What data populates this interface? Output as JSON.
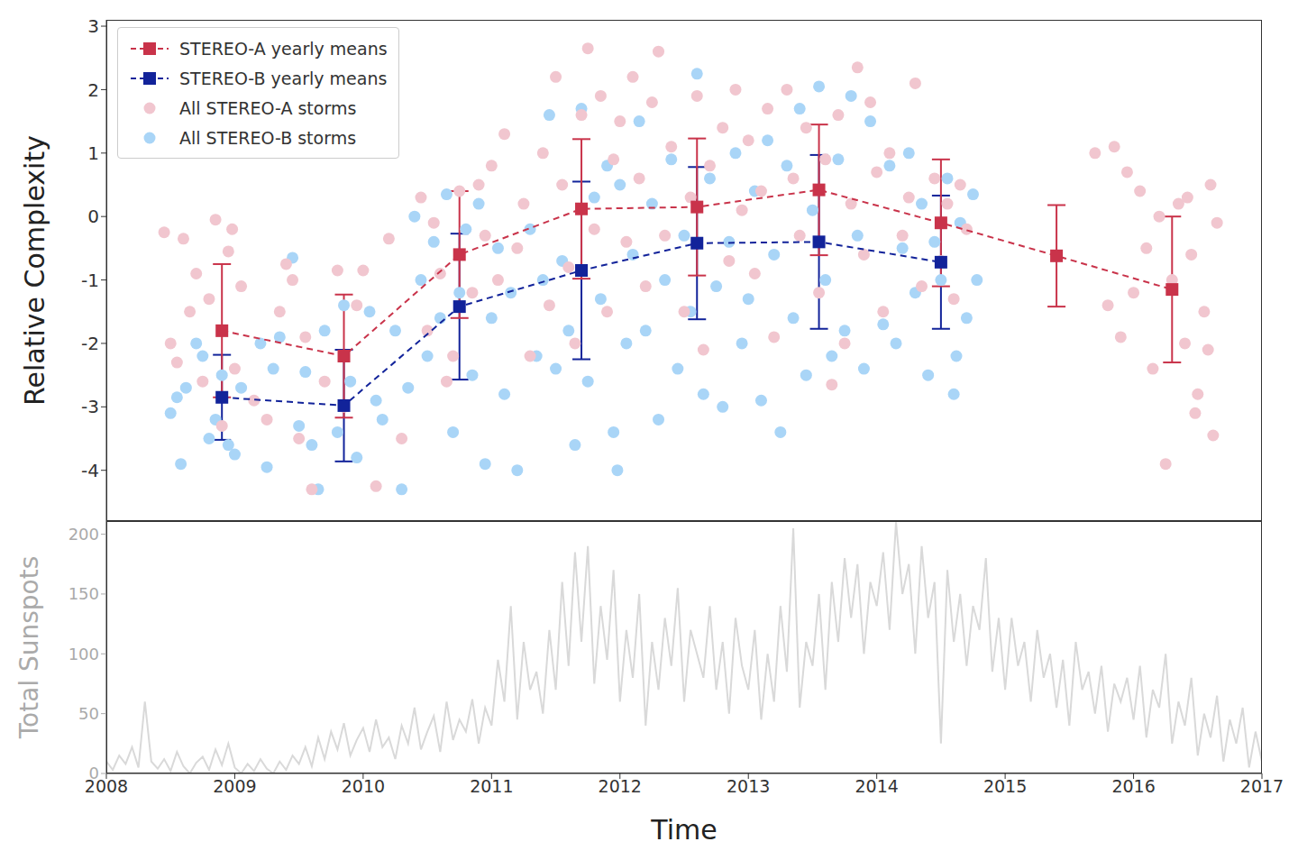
{
  "chart_data": [
    {
      "type": "scatter",
      "ylabel": "Relative Complexity",
      "xlim": [
        2008,
        2017
      ],
      "xticks": [
        2008,
        2009,
        2010,
        2011,
        2012,
        2013,
        2014,
        2015,
        2016,
        2017
      ],
      "ylim": [
        -4.8,
        3.1
      ],
      "yticks": [
        -4,
        -3,
        -2,
        -1,
        0,
        1,
        2,
        3
      ],
      "legend": "upper left",
      "tick_labels": "y",
      "series": [
        {
          "name": "STEREO-A yearly means",
          "type": "line",
          "line_style": "dashed",
          "marker": "square",
          "color": "#c9334a",
          "x": [
            2008.9,
            2009.85,
            2010.75,
            2011.7,
            2012.6,
            2013.55,
            2014.5,
            2015.4,
            2016.3
          ],
          "values": [
            -1.8,
            -2.2,
            -0.6,
            0.12,
            0.15,
            0.42,
            -0.1,
            -0.62,
            -1.15
          ],
          "error": [
            1.05,
            0.97,
            1.0,
            1.1,
            1.08,
            1.03,
            1.0,
            0.8,
            1.15
          ]
        },
        {
          "name": "STEREO-B yearly means",
          "type": "line",
          "line_style": "dashed",
          "marker": "square",
          "color": "#12239a",
          "x": [
            2008.9,
            2009.85,
            2010.75,
            2011.7,
            2012.6,
            2013.55,
            2014.5
          ],
          "values": [
            -2.85,
            -2.98,
            -1.42,
            -0.85,
            -0.42,
            -0.4,
            -0.72
          ],
          "error": [
            0.67,
            0.88,
            1.15,
            1.4,
            1.2,
            1.37,
            1.05
          ]
        },
        {
          "name": "All STEREO-A storms",
          "type": "scatter",
          "marker": "circle",
          "color": "#f1c6cf",
          "x": [
            2008.45,
            2008.5,
            2008.55,
            2008.6,
            2008.65,
            2008.7,
            2008.75,
            2008.8,
            2008.85,
            2008.95,
            2009.0,
            2009.05,
            2008.9,
            2008.98,
            2009.15,
            2009.25,
            2009.35,
            2009.4,
            2009.5,
            2009.55,
            2009.6,
            2009.7,
            2009.8,
            2009.85,
            2009.95,
            2010.0,
            2010.1,
            2010.2,
            2010.3,
            2009.45,
            2010.45,
            2010.5,
            2010.6,
            2010.7,
            2010.75,
            2010.85,
            2010.9,
            2010.95,
            2010.55,
            2010.65,
            2011.0,
            2011.05,
            2011.1,
            2011.2,
            2011.25,
            2011.3,
            2011.4,
            2011.45,
            2011.5,
            2011.55,
            2011.6,
            2011.7,
            2011.75,
            2011.8,
            2011.85,
            2011.9,
            2011.95,
            2011.65,
            2012.0,
            2012.05,
            2012.1,
            2012.15,
            2012.2,
            2012.25,
            2012.3,
            2012.35,
            2012.4,
            2012.5,
            2012.55,
            2012.6,
            2012.65,
            2012.7,
            2012.8,
            2012.85,
            2012.9,
            2012.95,
            2013.0,
            2013.05,
            2013.1,
            2013.15,
            2013.2,
            2013.3,
            2013.35,
            2013.4,
            2013.45,
            2013.55,
            2013.6,
            2013.7,
            2013.75,
            2013.8,
            2013.85,
            2013.9,
            2013.95,
            2013.65,
            2014.0,
            2014.05,
            2014.1,
            2014.2,
            2014.25,
            2014.3,
            2014.35,
            2014.45,
            2014.5,
            2014.55,
            2014.6,
            2014.65,
            2014.7,
            2015.7,
            2015.8,
            2015.85,
            2015.9,
            2015.95,
            2016.0,
            2016.05,
            2016.1,
            2016.15,
            2016.2,
            2016.25,
            2016.3,
            2016.35,
            2016.4,
            2016.45,
            2016.5,
            2016.55,
            2016.6,
            2016.62,
            2016.65,
            2016.58,
            2016.42,
            2016.48
          ],
          "values": [
            -0.25,
            -2.0,
            -2.3,
            -0.35,
            -1.5,
            -0.9,
            -2.6,
            -1.3,
            -0.05,
            -0.55,
            -2.4,
            -1.1,
            -3.3,
            -0.2,
            -2.9,
            -3.2,
            -1.5,
            -0.75,
            -3.5,
            -1.9,
            -4.3,
            -2.6,
            -0.85,
            -3.0,
            -1.4,
            -0.85,
            -4.25,
            -0.35,
            -3.5,
            -1.0,
            0.3,
            -1.8,
            -0.9,
            -2.2,
            0.4,
            -1.2,
            0.5,
            -0.3,
            -0.1,
            -2.6,
            0.8,
            -1.0,
            1.3,
            -0.5,
            0.2,
            -2.2,
            1.0,
            -1.4,
            2.2,
            0.5,
            -0.8,
            1.6,
            2.65,
            -0.2,
            1.9,
            -1.5,
            0.9,
            -2.0,
            1.5,
            -0.4,
            2.2,
            0.6,
            -1.1,
            1.8,
            2.6,
            -0.3,
            1.1,
            -1.5,
            0.3,
            1.9,
            -2.1,
            0.8,
            1.4,
            -0.7,
            2.0,
            0.1,
            1.2,
            -0.9,
            0.4,
            1.7,
            -1.9,
            2.0,
            0.6,
            -0.3,
            1.4,
            -1.2,
            0.9,
            1.6,
            -2.0,
            0.2,
            2.35,
            -0.6,
            1.8,
            -2.65,
            0.7,
            -1.5,
            1.0,
            -0.3,
            0.3,
            2.1,
            -1.1,
            0.6,
            -0.7,
            0.2,
            -1.3,
            0.5,
            -0.2,
            1.0,
            -1.4,
            1.1,
            -1.9,
            0.7,
            -1.2,
            0.4,
            -0.5,
            -2.4,
            0.0,
            -3.9,
            -1.0,
            0.2,
            -2.0,
            -0.6,
            -2.8,
            -1.5,
            0.5,
            -3.45,
            -0.1,
            -2.1,
            0.3,
            -3.1
          ]
        },
        {
          "name": "All STEREO-B storms",
          "type": "scatter",
          "marker": "circle",
          "color": "#a9d5f7",
          "x": [
            2008.5,
            2008.55,
            2008.58,
            2008.62,
            2008.7,
            2008.75,
            2008.8,
            2008.85,
            2008.9,
            2008.95,
            2009.0,
            2009.05,
            2009.2,
            2009.25,
            2009.3,
            2009.35,
            2009.45,
            2009.5,
            2009.55,
            2009.6,
            2009.65,
            2009.7,
            2009.8,
            2009.85,
            2009.9,
            2009.95,
            2010.05,
            2010.1,
            2010.15,
            2010.25,
            2010.3,
            2010.35,
            2010.4,
            2010.45,
            2010.5,
            2010.55,
            2010.6,
            2010.65,
            2010.7,
            2010.75,
            2010.8,
            2010.85,
            2010.9,
            2010.95,
            2011.0,
            2011.05,
            2011.1,
            2011.15,
            2011.2,
            2011.3,
            2011.35,
            2011.4,
            2011.45,
            2011.5,
            2011.55,
            2011.6,
            2011.65,
            2011.7,
            2011.75,
            2011.8,
            2011.85,
            2011.9,
            2011.95,
            2011.98,
            2012.0,
            2012.05,
            2012.1,
            2012.15,
            2012.2,
            2012.25,
            2012.3,
            2012.35,
            2012.4,
            2012.45,
            2012.5,
            2012.55,
            2012.6,
            2012.65,
            2012.7,
            2012.75,
            2012.8,
            2012.85,
            2012.9,
            2012.95,
            2013.0,
            2013.05,
            2013.1,
            2013.15,
            2013.2,
            2013.25,
            2013.3,
            2013.35,
            2013.4,
            2013.45,
            2013.5,
            2013.55,
            2013.6,
            2013.65,
            2013.7,
            2013.75,
            2013.8,
            2013.85,
            2013.9,
            2013.95,
            2014.05,
            2014.1,
            2014.15,
            2014.2,
            2014.25,
            2014.3,
            2014.35,
            2014.4,
            2014.45,
            2014.5,
            2014.55,
            2014.6,
            2014.65,
            2014.7,
            2014.75,
            2014.78,
            2014.62
          ],
          "values": [
            -3.1,
            -2.85,
            -3.9,
            -2.7,
            -2.0,
            -2.2,
            -3.5,
            -3.2,
            -2.5,
            -3.6,
            -3.75,
            -2.7,
            -2.0,
            -3.95,
            -2.4,
            -1.9,
            -0.65,
            -3.3,
            -2.45,
            -3.6,
            -4.3,
            -1.8,
            -3.4,
            -1.4,
            -2.6,
            -3.8,
            -1.5,
            -2.9,
            -3.2,
            -1.8,
            -4.3,
            -2.7,
            0.0,
            -1.0,
            -2.2,
            -0.4,
            -1.6,
            0.35,
            -3.4,
            -1.2,
            -0.2,
            -2.5,
            0.2,
            -3.9,
            -1.6,
            -0.5,
            -2.8,
            -1.2,
            -4.0,
            -0.2,
            -2.2,
            -1.0,
            1.6,
            -2.4,
            -0.7,
            -1.8,
            -3.6,
            1.7,
            -2.6,
            0.3,
            -1.3,
            0.8,
            -3.4,
            -4.0,
            0.5,
            -2.0,
            -0.6,
            1.5,
            -1.8,
            0.2,
            -3.2,
            -1.0,
            0.9,
            -2.4,
            -0.3,
            -1.5,
            2.25,
            -2.8,
            0.6,
            -1.1,
            -3.0,
            -0.4,
            1.0,
            -2.0,
            -1.3,
            0.4,
            -2.9,
            1.2,
            -0.6,
            -3.4,
            0.8,
            -1.6,
            1.7,
            -2.5,
            0.1,
            2.05,
            -1.0,
            -2.2,
            0.9,
            -1.8,
            1.9,
            -0.3,
            -2.4,
            1.5,
            -1.7,
            0.8,
            -2.0,
            -0.5,
            1.0,
            -1.2,
            0.2,
            -2.5,
            -0.4,
            -1.0,
            0.6,
            -2.8,
            -0.1,
            -1.6,
            0.35,
            -1.0,
            -2.2
          ]
        }
      ]
    },
    {
      "type": "line",
      "xlabel": "Time",
      "ylabel": "Total Sunspots",
      "xlim": [
        2008,
        2017
      ],
      "xticks": [
        2008,
        2009,
        2010,
        2011,
        2012,
        2013,
        2014,
        2015,
        2016,
        2017
      ],
      "ylim": [
        0,
        211
      ],
      "yticks": [
        0,
        50,
        100,
        150,
        200
      ],
      "series": [
        {
          "color": "#d9d9d9",
          "x": [
            2008.0,
            2008.05,
            2008.1,
            2008.15,
            2008.2,
            2008.25,
            2008.3,
            2008.35,
            2008.4,
            2008.45,
            2008.5,
            2008.55,
            2008.6,
            2008.65,
            2008.7,
            2008.75,
            2008.8,
            2008.85,
            2008.9,
            2008.95,
            2009.0,
            2009.05,
            2009.1,
            2009.15,
            2009.2,
            2009.25,
            2009.3,
            2009.35,
            2009.4,
            2009.45,
            2009.5,
            2009.55,
            2009.6,
            2009.65,
            2009.7,
            2009.75,
            2009.8,
            2009.85,
            2009.9,
            2009.95,
            2010.0,
            2010.05,
            2010.1,
            2010.15,
            2010.2,
            2010.25,
            2010.3,
            2010.35,
            2010.4,
            2010.45,
            2010.5,
            2010.55,
            2010.6,
            2010.65,
            2010.7,
            2010.75,
            2010.8,
            2010.85,
            2010.9,
            2010.95,
            2011.0,
            2011.05,
            2011.1,
            2011.15,
            2011.2,
            2011.25,
            2011.3,
            2011.35,
            2011.4,
            2011.45,
            2011.5,
            2011.55,
            2011.6,
            2011.65,
            2011.7,
            2011.75,
            2011.8,
            2011.85,
            2011.9,
            2011.95,
            2012.0,
            2012.05,
            2012.1,
            2012.15,
            2012.2,
            2012.25,
            2012.3,
            2012.35,
            2012.4,
            2012.45,
            2012.5,
            2012.55,
            2012.6,
            2012.65,
            2012.7,
            2012.75,
            2012.8,
            2012.85,
            2012.9,
            2012.95,
            2013.0,
            2013.05,
            2013.1,
            2013.15,
            2013.2,
            2013.25,
            2013.3,
            2013.35,
            2013.4,
            2013.45,
            2013.5,
            2013.55,
            2013.6,
            2013.65,
            2013.7,
            2013.75,
            2013.8,
            2013.85,
            2013.9,
            2013.95,
            2014.0,
            2014.05,
            2014.1,
            2014.15,
            2014.2,
            2014.25,
            2014.3,
            2014.35,
            2014.4,
            2014.45,
            2014.5,
            2014.55,
            2014.6,
            2014.65,
            2014.7,
            2014.75,
            2014.8,
            2014.85,
            2014.9,
            2014.95,
            2015.0,
            2015.05,
            2015.1,
            2015.15,
            2015.2,
            2015.25,
            2015.3,
            2015.35,
            2015.4,
            2015.45,
            2015.5,
            2015.55,
            2015.6,
            2015.65,
            2015.7,
            2015.75,
            2015.8,
            2015.85,
            2015.9,
            2015.95,
            2016.0,
            2016.05,
            2016.1,
            2016.15,
            2016.2,
            2016.25,
            2016.3,
            2016.35,
            2016.4,
            2016.45,
            2016.5,
            2016.55,
            2016.6,
            2016.65,
            2016.7,
            2016.75,
            2016.8,
            2016.85,
            2016.9,
            2016.95,
            2017.0
          ],
          "values": [
            10,
            3,
            15,
            8,
            22,
            5,
            60,
            10,
            4,
            12,
            2,
            18,
            6,
            0,
            9,
            14,
            3,
            20,
            7,
            25,
            5,
            0,
            8,
            2,
            12,
            4,
            0,
            10,
            3,
            15,
            8,
            22,
            6,
            30,
            12,
            35,
            20,
            42,
            15,
            28,
            38,
            18,
            45,
            22,
            30,
            12,
            40,
            25,
            55,
            20,
            35,
            48,
            18,
            60,
            28,
            45,
            35,
            62,
            25,
            55,
            40,
            95,
            60,
            140,
            45,
            110,
            70,
            85,
            50,
            120,
            70,
            160,
            90,
            185,
            110,
            190,
            75,
            140,
            95,
            170,
            60,
            120,
            80,
            150,
            40,
            110,
            70,
            130,
            90,
            155,
            60,
            120,
            100,
            80,
            140,
            70,
            110,
            50,
            130,
            90,
            70,
            120,
            45,
            100,
            60,
            140,
            85,
            205,
            55,
            110,
            90,
            150,
            70,
            160,
            110,
            180,
            130,
            175,
            100,
            160,
            140,
            185,
            120,
            210,
            150,
            175,
            100,
            190,
            130,
            160,
            25,
            170,
            110,
            150,
            90,
            140,
            120,
            180,
            85,
            130,
            70,
            130,
            90,
            110,
            60,
            120,
            80,
            100,
            55,
            95,
            40,
            110,
            70,
            85,
            50,
            90,
            35,
            75,
            60,
            80,
            45,
            90,
            30,
            70,
            55,
            100,
            25,
            60,
            40,
            80,
            15,
            50,
            30,
            65,
            10,
            45,
            25,
            55,
            5,
            35,
            10
          ]
        }
      ]
    }
  ]
}
